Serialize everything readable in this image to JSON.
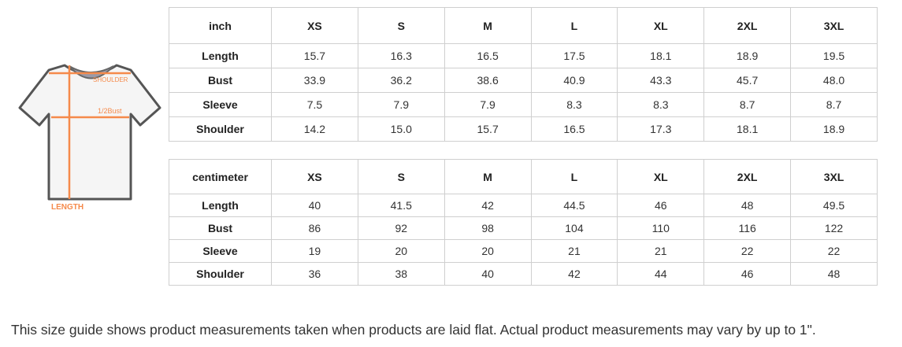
{
  "diagram": {
    "labels": {
      "shoulder": "SHOULDER",
      "bust": "1/2Bust",
      "length": "LENGTH"
    },
    "accent_color": "#f58a4b"
  },
  "sizes": [
    "XS",
    "S",
    "M",
    "L",
    "XL",
    "2XL",
    "3XL"
  ],
  "inch_table": {
    "unit": "inch",
    "rows": [
      {
        "label": "Length",
        "values": [
          "15.7",
          "16.3",
          "16.5",
          "17.5",
          "18.1",
          "18.9",
          "19.5"
        ]
      },
      {
        "label": "Bust",
        "values": [
          "33.9",
          "36.2",
          "38.6",
          "40.9",
          "43.3",
          "45.7",
          "48.0"
        ]
      },
      {
        "label": "Sleeve",
        "values": [
          "7.5",
          "7.9",
          "7.9",
          "8.3",
          "8.3",
          "8.7",
          "8.7"
        ]
      },
      {
        "label": "Shoulder",
        "values": [
          "14.2",
          "15.0",
          "15.7",
          "16.5",
          "17.3",
          "18.1",
          "18.9"
        ]
      }
    ]
  },
  "cm_table": {
    "unit": "centimeter",
    "rows": [
      {
        "label": "Length",
        "values": [
          "40",
          "41.5",
          "42",
          "44.5",
          "46",
          "48",
          "49.5"
        ]
      },
      {
        "label": "Bust",
        "values": [
          "86",
          "92",
          "98",
          "104",
          "110",
          "116",
          "122"
        ]
      },
      {
        "label": "Sleeve",
        "values": [
          "19",
          "20",
          "20",
          "21",
          "21",
          "22",
          "22"
        ]
      },
      {
        "label": "Shoulder",
        "values": [
          "36",
          "38",
          "40",
          "42",
          "44",
          "46",
          "48"
        ]
      }
    ]
  },
  "note": "This size guide shows product measurements taken when products are laid flat. Actual product measurements may vary by up to 1\"."
}
